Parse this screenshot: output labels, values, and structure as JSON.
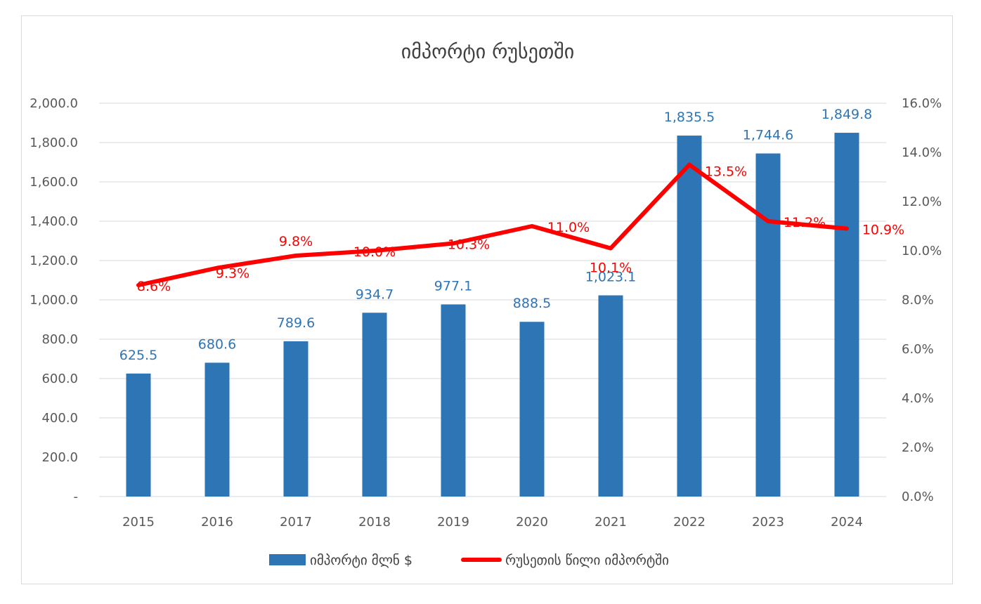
{
  "chart_data": {
    "type": "bar+line",
    "title": "იმპორტი რუსეთში",
    "categories": [
      "2015",
      "2016",
      "2017",
      "2018",
      "2019",
      "2020",
      "2021",
      "2022",
      "2023",
      "2024"
    ],
    "series": [
      {
        "name": "იმპორტი მლნ $",
        "type": "bar",
        "axis": "left",
        "color": "#2e75b6",
        "values": [
          625.5,
          680.6,
          789.6,
          934.7,
          977.1,
          888.5,
          1023.1,
          1835.5,
          1744.6,
          1849.8
        ],
        "labels": [
          "625.5",
          "680.6",
          "789.6",
          "934.7",
          "977.1",
          "888.5",
          "1,023.1",
          "1,835.5",
          "1,744.6",
          "1,849.8"
        ]
      },
      {
        "name": "რუსეთის წილი იმპორტში",
        "type": "line",
        "axis": "right",
        "color": "#ff0000",
        "values": [
          8.6,
          9.3,
          9.8,
          10.0,
          10.3,
          11.0,
          10.1,
          13.5,
          11.2,
          10.9
        ],
        "labels": [
          "8.6%",
          "9.3%",
          "9.8%",
          "10.0%",
          "10.3%",
          "11.0%",
          "10.1%",
          "13.5%",
          "11.2%",
          "10.9%"
        ]
      }
    ],
    "y_left": {
      "ylim": [
        0,
        2000
      ],
      "ticks": [
        0,
        200,
        400,
        600,
        800,
        1000,
        1200,
        1400,
        1600,
        1800,
        2000
      ],
      "tick_labels": [
        "-",
        "200.0",
        "400.0",
        "600.0",
        "800.0",
        "1,000.0",
        "1,200.0",
        "1,400.0",
        "1,600.0",
        "1,800.0",
        "2,000.0"
      ]
    },
    "y_right": {
      "ylim": [
        0,
        16
      ],
      "ticks": [
        0,
        2,
        4,
        6,
        8,
        10,
        12,
        14,
        16
      ],
      "tick_labels": [
        "0.0%",
        "2.0%",
        "4.0%",
        "6.0%",
        "8.0%",
        "10.0%",
        "12.0%",
        "14.0%",
        "16.0%"
      ]
    },
    "grid": true,
    "legend_position": "bottom"
  }
}
